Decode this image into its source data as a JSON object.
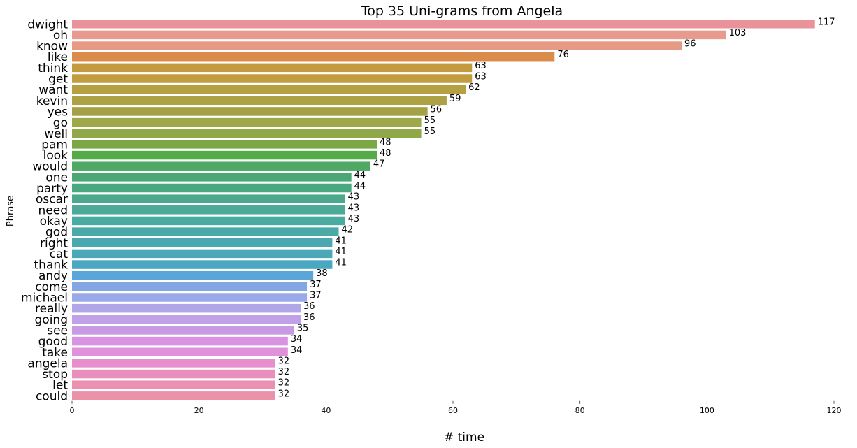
{
  "chart_data": {
    "type": "bar",
    "orientation": "horizontal",
    "title": "Top 35 Uni-grams from Angela",
    "xlabel": "# time",
    "ylabel": "Phrase",
    "xlim": [
      0,
      120
    ],
    "xticks": [
      0,
      20,
      40,
      60,
      80,
      100,
      120
    ],
    "grid": false,
    "categories": [
      "dwight",
      "oh",
      "know",
      "like",
      "think",
      "get",
      "want",
      "kevin",
      "yes",
      "go",
      "well",
      "pam",
      "look",
      "would",
      "one",
      "party",
      "oscar",
      "need",
      "okay",
      "god",
      "right",
      "cat",
      "thank",
      "andy",
      "come",
      "michael",
      "really",
      "going",
      "see",
      "good",
      "take",
      "angela",
      "stop",
      "let",
      "could"
    ],
    "values": [
      117,
      103,
      96,
      76,
      63,
      63,
      62,
      59,
      56,
      55,
      55,
      48,
      48,
      47,
      44,
      44,
      43,
      43,
      43,
      42,
      41,
      41,
      41,
      38,
      37,
      37,
      36,
      36,
      35,
      34,
      34,
      32,
      32,
      32,
      32
    ],
    "colors": [
      "#ea929a",
      "#e89a8f",
      "#e69a86",
      "#db8c4a",
      "#c49a3f",
      "#c19d40",
      "#b5a042",
      "#aca144",
      "#a3a046",
      "#9ea848",
      "#90a848",
      "#7aa845",
      "#55ab48",
      "#4fa965",
      "#4ba774",
      "#4aa880",
      "#4aa98d",
      "#4aaa97",
      "#4aaba0",
      "#4aaaa8",
      "#4aa9b0",
      "#4aa8b9",
      "#4aa7c2",
      "#5aa6d8",
      "#84a6e2",
      "#9aaae8",
      "#b0a6e8",
      "#c0a0e6",
      "#c99ae4",
      "#d894e2",
      "#e091dc",
      "#e68fcc",
      "#e98fbc",
      "#eb90b0",
      "#eb92a8"
    ]
  }
}
